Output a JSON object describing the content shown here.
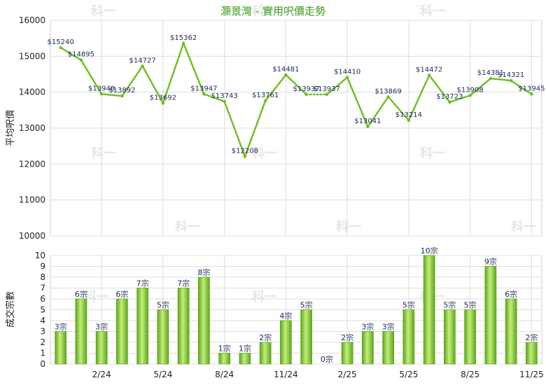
{
  "chart_data": [
    {
      "type": "line",
      "title": "灝景灣 - 實用呎價走勢",
      "ylabel": "平均呎價",
      "ylim": [
        10000,
        16000
      ],
      "yticks": [
        10000,
        11000,
        12000,
        13000,
        14000,
        15000,
        16000
      ],
      "grid": true,
      "color": "#6cbf1e",
      "series": [
        {
          "values": [
            15240,
            14895,
            13948,
            13892,
            14727,
            13692,
            15362,
            13947,
            13743,
            12208,
            13761,
            14481,
            13937,
            13937,
            14410,
            13041,
            13869,
            13214,
            14472,
            13723,
            13908,
            14381,
            14321,
            13945
          ],
          "labels": [
            "$15240",
            "$14895",
            "$13948",
            "$13892",
            "$14727",
            "$13692",
            "$15362",
            "$13947",
            "$13743",
            "$12208",
            "$13761",
            "$14481",
            "$13937",
            "$13937",
            "$14410",
            "$13041",
            "$13869",
            "$13214",
            "$14472",
            "$13723",
            "$13908",
            "$14381",
            "$14321",
            "$13945"
          ],
          "dotted_segments": [
            12
          ]
        }
      ]
    },
    {
      "type": "bar",
      "ylabel": "成交宗數",
      "ylim": [
        0,
        10
      ],
      "yticks": [
        0,
        1,
        2,
        3,
        4,
        5,
        6,
        7,
        8,
        9,
        10
      ],
      "grid": true,
      "color": "#7ac52a",
      "values": [
        3,
        6,
        3,
        6,
        7,
        5,
        7,
        8,
        1,
        1,
        2,
        4,
        5,
        0,
        2,
        3,
        3,
        5,
        10,
        5,
        5,
        9,
        6,
        2
      ],
      "labels": [
        "3宗",
        "6宗",
        "3宗",
        "6宗",
        "7宗",
        "5宗",
        "7宗",
        "8宗",
        "1宗",
        "1宗",
        "2宗",
        "4宗",
        "5宗",
        "0宗",
        "2宗",
        "3宗",
        "3宗",
        "5宗",
        "10宗",
        "5宗",
        "5宗",
        "9宗",
        "6宗",
        "2宗"
      ],
      "xtick_labels": [
        {
          "index": 2,
          "label": "2/24"
        },
        {
          "index": 5,
          "label": "5/24"
        },
        {
          "index": 8,
          "label": "8/24"
        },
        {
          "index": 11,
          "label": "11/24"
        },
        {
          "index": 14,
          "label": "2/25"
        },
        {
          "index": 17,
          "label": "5/25"
        },
        {
          "index": 20,
          "label": "8/25"
        },
        {
          "index": 23,
          "label": "11/25"
        }
      ]
    }
  ],
  "watermark": "科一"
}
